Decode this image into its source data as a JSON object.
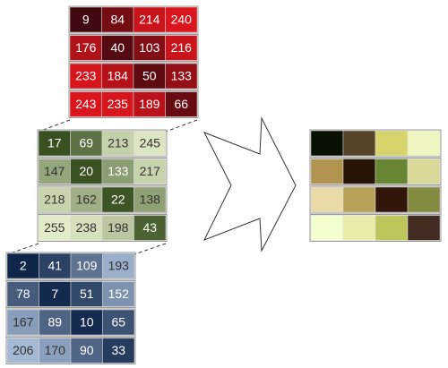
{
  "red": [
    [
      9,
      84,
      214,
      240
    ],
    [
      176,
      40,
      103,
      216
    ],
    [
      233,
      184,
      50,
      133
    ],
    [
      243,
      235,
      189,
      66
    ]
  ],
  "green": [
    [
      17,
      69,
      213,
      245
    ],
    [
      147,
      20,
      133,
      217
    ],
    [
      218,
      162,
      22,
      138
    ],
    [
      255,
      238,
      198,
      43
    ]
  ],
  "blue": [
    [
      2,
      41,
      109,
      193
    ],
    [
      78,
      7,
      51,
      152
    ],
    [
      167,
      89,
      10,
      65
    ],
    [
      206,
      170,
      90,
      33
    ]
  ]
}
